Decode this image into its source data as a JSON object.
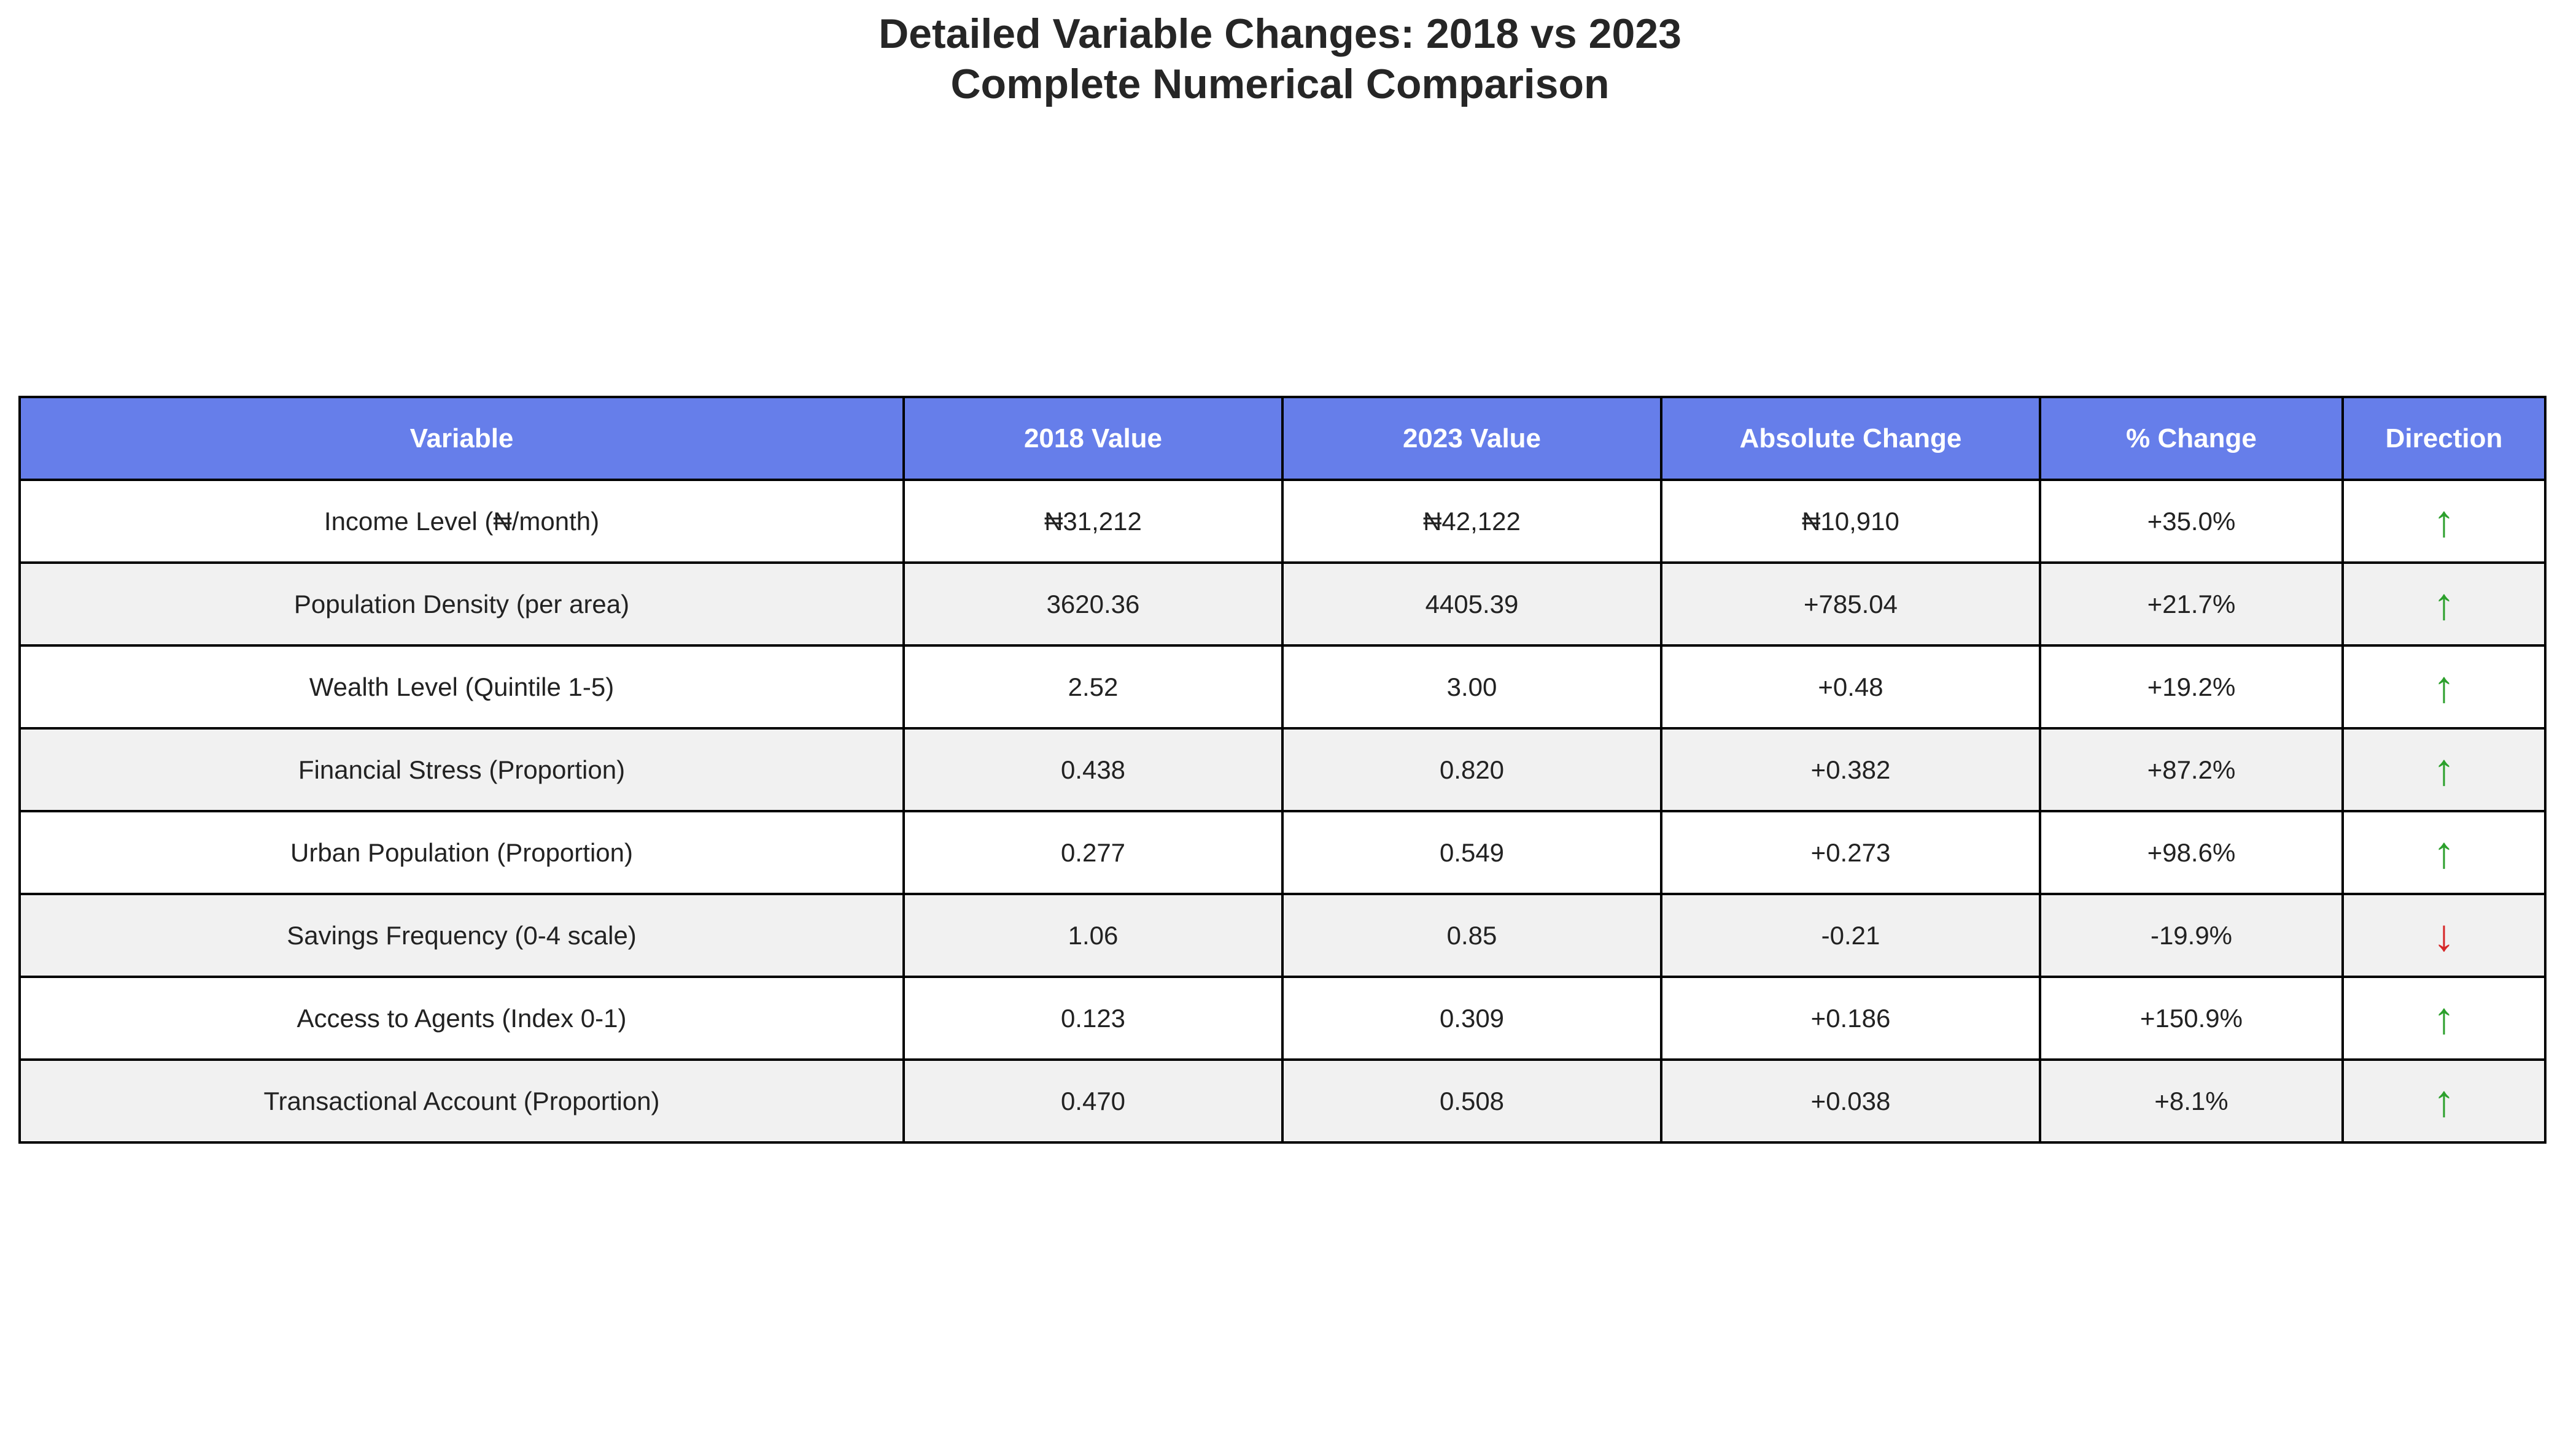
{
  "title_line1": "Detailed Variable Changes: 2018 vs 2023",
  "title_line2": "Complete Numerical Comparison",
  "colors": {
    "header_bg": "#667eea",
    "header_text": "#ffffff",
    "row_alt_bg": "#f1f1f1",
    "up_arrow": "#2ca02c",
    "down_arrow": "#d62728"
  },
  "chart_data": {
    "type": "table",
    "columns": [
      "Variable",
      "2018 Value",
      "2023 Value",
      "Absolute Change",
      "% Change",
      "Direction"
    ],
    "rows": [
      {
        "variable": "Income Level (₦/month)",
        "v2018": "₦31,212",
        "v2023": "₦42,122",
        "abs_change": "₦10,910",
        "pct_change": "+35.0%",
        "direction": "↑",
        "trend": "up"
      },
      {
        "variable": "Population Density (per area)",
        "v2018": "3620.36",
        "v2023": "4405.39",
        "abs_change": "+785.04",
        "pct_change": "+21.7%",
        "direction": "↑",
        "trend": "up"
      },
      {
        "variable": "Wealth Level (Quintile 1-5)",
        "v2018": "2.52",
        "v2023": "3.00",
        "abs_change": "+0.48",
        "pct_change": "+19.2%",
        "direction": "↑",
        "trend": "up"
      },
      {
        "variable": "Financial Stress (Proportion)",
        "v2018": "0.438",
        "v2023": "0.820",
        "abs_change": "+0.382",
        "pct_change": "+87.2%",
        "direction": "↑",
        "trend": "up"
      },
      {
        "variable": "Urban Population (Proportion)",
        "v2018": "0.277",
        "v2023": "0.549",
        "abs_change": "+0.273",
        "pct_change": "+98.6%",
        "direction": "↑",
        "trend": "up"
      },
      {
        "variable": "Savings Frequency (0-4 scale)",
        "v2018": "1.06",
        "v2023": "0.85",
        "abs_change": "-0.21",
        "pct_change": "-19.9%",
        "direction": "↓",
        "trend": "down"
      },
      {
        "variable": "Access to Agents (Index 0-1)",
        "v2018": "0.123",
        "v2023": "0.309",
        "abs_change": "+0.186",
        "pct_change": "+150.9%",
        "direction": "↑",
        "trend": "up"
      },
      {
        "variable": "Transactional Account (Proportion)",
        "v2018": "0.470",
        "v2023": "0.508",
        "abs_change": "+0.038",
        "pct_change": "+8.1%",
        "direction": "↑",
        "trend": "up"
      }
    ]
  }
}
